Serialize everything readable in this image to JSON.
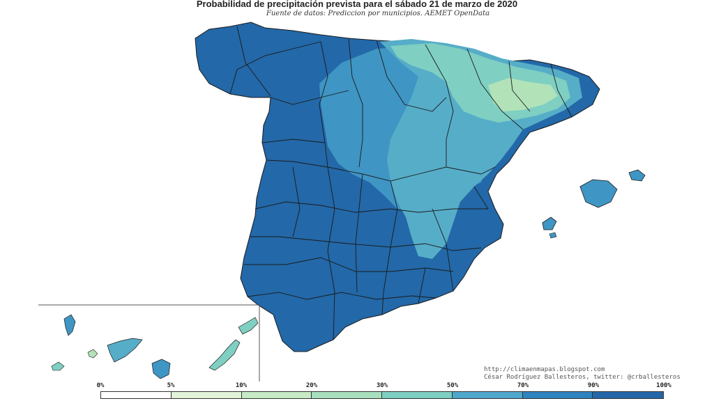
{
  "header": {
    "title": "Probabilidad de precipitación prevista para el sábado 21 de marzo de 2020",
    "subtitle": "Fuente de datos: Prediccion por municipios. AEMET OpenData"
  },
  "credits": {
    "line1": "http://climaenmapas.blogspot.com",
    "line2": "César Rodríguez Ballesteros, twitter: @crballesteros"
  },
  "colors": {
    "ocean": "#ffffff",
    "border": "#1a1a1a",
    "very_high": "#2368a8",
    "high": "#2f80bd",
    "mid_high": "#3f95c3",
    "mid": "#56adc8",
    "low": "#7fcfc2",
    "very_low": "#b2e2b8"
  },
  "legend": {
    "labels": [
      "0%",
      "5%",
      "10%",
      "20%",
      "30%",
      "50%",
      "70%",
      "90%",
      "100%"
    ],
    "colors": [
      "#ffffff",
      "#e1f3d8",
      "#c6ebc6",
      "#a8dfbf",
      "#7dcfc2",
      "#4fa7cc",
      "#2f83bf",
      "#2467a8"
    ]
  }
}
